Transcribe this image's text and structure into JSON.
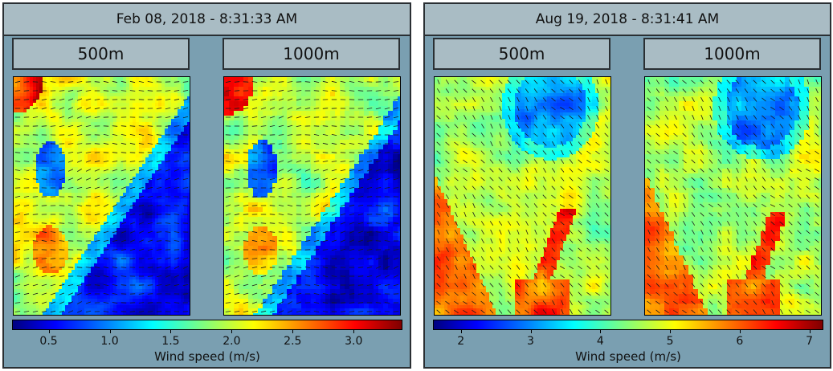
{
  "panels": [
    {
      "title": "Feb 08, 2018 - 8:31:33 AM",
      "maps": [
        {
          "label": "500m"
        },
        {
          "label": "1000m"
        }
      ],
      "colorbar": {
        "label": "Wind speed (m/s)",
        "min": 0.2,
        "max": 3.4,
        "ticks": [
          "0.5",
          "1.0",
          "1.5",
          "2.0",
          "2.5",
          "3.0"
        ]
      }
    },
    {
      "title": "Aug 19, 2018 - 8:31:41 AM",
      "maps": [
        {
          "label": "500m"
        },
        {
          "label": "1000m"
        }
      ],
      "colorbar": {
        "label": "Wind speed (m/s)",
        "min": 1.6,
        "max": 7.2,
        "ticks": [
          "2",
          "3",
          "4",
          "5",
          "6",
          "7"
        ]
      }
    }
  ],
  "chart_data": [
    {
      "type": "heatmap",
      "title": "Feb 08, 2018 - 8:31:33 AM",
      "subplots": [
        "500m",
        "1000m"
      ],
      "colormap": "jet",
      "colorbar_label": "Wind speed (m/s)",
      "value_range": [
        0.2,
        3.4
      ],
      "colorbar_ticks": [
        0.5,
        1.0,
        1.5,
        2.0,
        2.5,
        3.0
      ],
      "overlay": "wind direction arrows (quiver)"
    },
    {
      "type": "heatmap",
      "title": "Aug 19, 2018 - 8:31:41 AM",
      "subplots": [
        "500m",
        "1000m"
      ],
      "colormap": "jet",
      "colorbar_label": "Wind speed (m/s)",
      "value_range": [
        1.6,
        7.2
      ],
      "colorbar_ticks": [
        2,
        3,
        4,
        5,
        6,
        7
      ],
      "overlay": "wind direction arrows (quiver)"
    }
  ]
}
